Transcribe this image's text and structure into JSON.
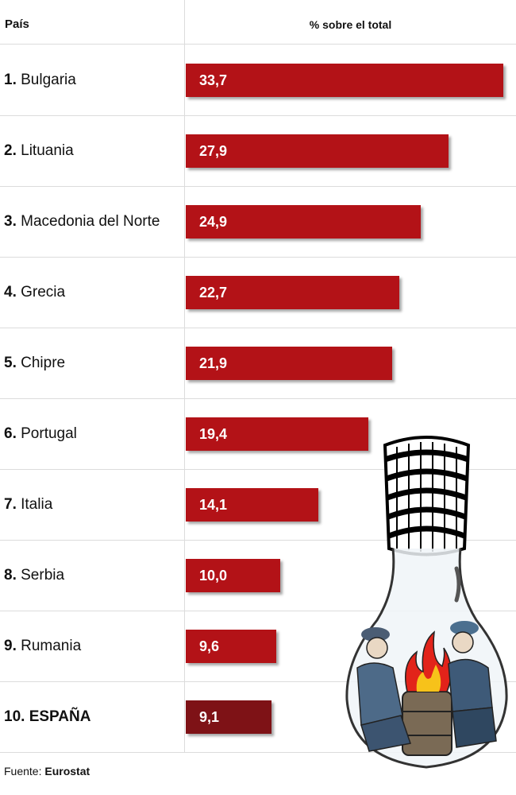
{
  "header": {
    "country_label": "País",
    "value_label": "% sobre el total"
  },
  "chart_data": {
    "type": "bar",
    "orientation": "horizontal",
    "ylabel": "% sobre el total",
    "xlim": [
      0,
      33.7
    ],
    "categories": [
      "Bulgaria",
      "Lituania",
      "Macedonia del Norte",
      "Grecia",
      "Chipre",
      "Portugal",
      "Italia",
      "Serbia",
      "Rumania",
      "ESPAÑA"
    ],
    "rank_labels": [
      "1.",
      "2.",
      "3.",
      "4.",
      "5.",
      "6.",
      "7.",
      "8.",
      "9.",
      "10."
    ],
    "values": [
      33.7,
      27.9,
      24.9,
      22.7,
      21.9,
      19.4,
      14.1,
      10.0,
      9.6,
      9.1
    ],
    "value_labels": [
      "33,7",
      "27,9",
      "24,9",
      "22,7",
      "21,9",
      "19,4",
      "14,1",
      "10,0",
      "9,6",
      "9,1"
    ],
    "highlight_index": 9,
    "colors": {
      "bar": "#b31217",
      "highlight": "#7e1216"
    }
  },
  "footer": {
    "prefix": "Fuente:",
    "source": "Eurostat"
  },
  "illustration": {
    "icon": "lightbulb-icon"
  }
}
